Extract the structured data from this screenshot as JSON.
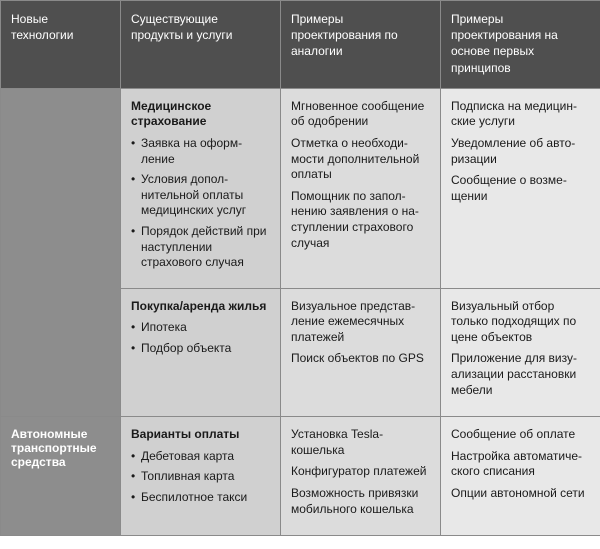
{
  "headers": {
    "tech": "Новые технологии",
    "products": "Существующие продукты и услуги",
    "analogy": "Примеры проектирования по аналогии",
    "first": "Примеры проектирования на основе первых принципов"
  },
  "rows": {
    "r1": {
      "tech": "",
      "prod_title": "Медицинское страхование",
      "prod_items": [
        "Заявка на оформ­ление",
        "Условия допол­нительной опла­ты медицинских услуг",
        "Порядок дей­ствий при наступ­лении страхового случая"
      ],
      "analogy": [
        "Мгновенное сообще­ние об одобрении",
        "Отметка о необходи­мости дополнительной оплаты",
        "Помощник по запол­нению заявления о на­ступлении страхового случая"
      ],
      "first": [
        "Подписка на медицин­ские услуги",
        "Уведомление об авто­ризации",
        "Сообщение о возме­щении"
      ]
    },
    "r2": {
      "prod_title": "Покупка/аренда жилья",
      "prod_items": [
        "Ипотека",
        "Подбор объекта"
      ],
      "analogy": [
        "Визуальное представ­ление ежемесячных платежей",
        "Поиск объектов по GPS"
      ],
      "first": [
        "Визуальный отбор только подходящих по цене объектов",
        "Приложение для визу­ализации расстановки мебели"
      ]
    },
    "r3": {
      "tech": "Автономные транспортные средства",
      "prod_title": "Варианты оплаты",
      "prod_items": [
        "Дебетовая карта",
        "Топливная карта",
        "Беспилотное такси"
      ],
      "analogy": [
        "Установка Tesla-кошелька",
        "Конфигуратор плате­жей",
        "Возможность привязки мобильного кошелька"
      ],
      "first": [
        "Сообщение об оплате",
        "Настройка автоматиче­ского списания",
        "Опции автономной сети"
      ]
    }
  },
  "colors": {
    "header_bg": "#4f4f4f",
    "rowhead_bg": "#8d8d8d",
    "prod_bg": "#d0d0d0",
    "analogy_bg": "#dcdcdc",
    "first_bg": "#e8e8e8",
    "border": "#8a8a8a",
    "text_light": "#ffffff",
    "text_dark": "#1a1a1a"
  }
}
